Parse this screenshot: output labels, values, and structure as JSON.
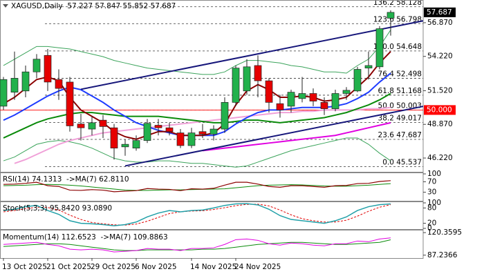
{
  "chart_data": [
    {
      "type": "candlestick",
      "title": "XAGUSD,Daily  57.227 57.847 55.852 57.687",
      "categories": [
        "13 Oct 2025",
        null,
        null,
        null,
        "21 Oct 2025",
        null,
        null,
        null,
        "29 Oct 2025",
        null,
        null,
        null,
        "6 Nov 2025",
        null,
        null,
        null,
        null,
        "14 Nov 2025",
        null,
        null,
        null,
        "24 Nov 2025",
        null,
        null,
        null,
        null,
        null,
        null,
        null,
        null,
        null,
        null,
        null,
        null,
        null,
        null
      ],
      "open": [
        50.3,
        51.4,
        51.5,
        53.0,
        54.3,
        52.4,
        52.2,
        48.9,
        48.5,
        49.2,
        48.6,
        47.1,
        47.0,
        47.6,
        48.8,
        48.6,
        48.2,
        47.2,
        48.3,
        48.1,
        48.5,
        50.6,
        51.5,
        53.5,
        52.3,
        50.5,
        50.3,
        50.9,
        51.3,
        50.6,
        50.1,
        51.3,
        51.5,
        53.3,
        53.4,
        57.227
      ],
      "high": [
        52.6,
        54.6,
        53.5,
        54.4,
        54.8,
        53.2,
        52.6,
        49.7,
        49.5,
        49.6,
        48.9,
        47.7,
        48.0,
        49.3,
        49.3,
        49.0,
        48.5,
        48.6,
        48.9,
        48.8,
        51.0,
        53.5,
        54.0,
        54.3,
        52.5,
        51.2,
        51.6,
        52.6,
        51.7,
        51.0,
        51.6,
        51.8,
        53.4,
        54.6,
        56.6,
        57.847
      ],
      "low": [
        50.0,
        50.8,
        51.0,
        52.5,
        51.5,
        50.8,
        48.3,
        47.6,
        48.0,
        47.8,
        46.1,
        46.4,
        46.8,
        47.4,
        48.0,
        48.0,
        47.0,
        47.0,
        47.8,
        47.6,
        48.2,
        50.3,
        51.2,
        51.0,
        49.8,
        49.4,
        49.8,
        50.6,
        50.3,
        49.6,
        49.9,
        50.8,
        51.4,
        52.4,
        53.2,
        55.852
      ],
      "close": [
        52.4,
        52.5,
        53.0,
        54.0,
        52.2,
        51.7,
        48.75,
        48.6,
        49.0,
        48.7,
        47.0,
        47.3,
        47.6,
        48.95,
        48.6,
        48.3,
        47.2,
        48.2,
        48.1,
        48.5,
        50.6,
        53.3,
        53.4,
        52.3,
        50.6,
        50.0,
        51.4,
        51.3,
        50.7,
        50.1,
        51.3,
        51.55,
        53.2,
        53.5,
        56.4,
        57.687
      ],
      "up_color": "#22b14c",
      "down_color": "#e60000",
      "ylim": [
        45.19,
        58.55
      ],
      "yticks": [
        {
          "value": 46.22,
          "label": "46.220"
        },
        {
          "value": 48.87,
          "label": "48.870"
        },
        {
          "value": 51.52,
          "label": "51.520"
        },
        {
          "value": 54.22,
          "label": "54.220"
        },
        {
          "value": 56.87,
          "label": "56.870"
        }
      ],
      "series": [
        {
          "color": "#3aa35a",
          "width": 1,
          "values": [
            53.5,
            54.0,
            54.5,
            55.0,
            55.0,
            54.9,
            54.8,
            54.6,
            54.4,
            54.2,
            53.9,
            53.7,
            53.5,
            53.3,
            53.2,
            53.1,
            53.0,
            52.9,
            52.8,
            52.8,
            53.0,
            53.5,
            53.9,
            53.9,
            53.8,
            53.7,
            53.5,
            53.4,
            53.2,
            53.0,
            53.0,
            52.9,
            53.5,
            54.0,
            55.0,
            56.3
          ]
        },
        {
          "color": "#3aa35a",
          "width": 1,
          "values": [
            46.0,
            46.3,
            46.8,
            47.3,
            47.5,
            47.6,
            47.5,
            47.3,
            47.0,
            46.6,
            46.2,
            46.0,
            45.9,
            45.9,
            46.0,
            46.0,
            45.9,
            45.8,
            45.8,
            45.7,
            45.6,
            45.5,
            45.6,
            45.9,
            46.2,
            46.5,
            46.8,
            47.0,
            47.2,
            47.4,
            47.6,
            47.8,
            47.8,
            47.3,
            46.6,
            46.0
          ]
        },
        {
          "color": "#f0a0d8",
          "width": 2,
          "values": [
            null,
            45.8,
            46.1,
            46.5,
            46.9,
            47.3,
            47.6,
            47.8,
            48.0,
            48.2,
            48.3,
            48.4,
            48.5,
            48.6,
            48.7,
            48.8,
            48.9,
            49.0,
            49.1,
            49.2,
            49.3,
            49.4,
            49.5,
            49.6,
            49.7,
            49.8,
            49.8,
            49.9,
            49.9,
            50.0,
            50.0,
            50.0,
            50.0,
            50.1,
            50.1,
            50.2
          ]
        },
        {
          "color": "#e000e0",
          "width": 2,
          "values": [
            null,
            null,
            null,
            null,
            null,
            null,
            null,
            null,
            null,
            null,
            null,
            null,
            null,
            null,
            null,
            null,
            null,
            null,
            46.8,
            46.9,
            47.0,
            47.1,
            47.2,
            47.3,
            47.4,
            47.5,
            47.6,
            47.7,
            47.8,
            47.9,
            48.0,
            48.2,
            48.4,
            48.6,
            48.8,
            49.0
          ]
        },
        {
          "color": "#0a8a0a",
          "width": 2,
          "values": [
            47.8,
            48.2,
            48.6,
            49.0,
            49.3,
            49.5,
            49.7,
            49.8,
            49.8,
            49.7,
            49.6,
            49.5,
            49.5,
            49.5,
            49.5,
            49.4,
            49.3,
            49.2,
            49.1,
            49.0,
            49.0,
            49.1,
            49.2,
            49.2,
            49.1,
            49.0,
            49.1,
            49.2,
            49.3,
            49.4,
            49.6,
            49.8,
            50.1,
            50.4,
            50.8,
            51.3
          ]
        },
        {
          "color": "#1e3cff",
          "width": 2,
          "values": [
            49.2,
            49.6,
            50.1,
            50.6,
            51.1,
            51.5,
            51.8,
            51.6,
            51.1,
            50.6,
            50.0,
            49.5,
            49.0,
            48.7,
            48.4,
            48.2,
            48.0,
            48.0,
            48.0,
            48.0,
            48.3,
            48.9,
            49.4,
            49.8,
            50.0,
            50.0,
            50.1,
            50.2,
            50.2,
            50.2,
            50.3,
            50.5,
            50.9,
            51.4,
            52.2,
            52.9
          ]
        },
        {
          "color": "#8b0000",
          "width": 2,
          "values": [
            50.5,
            51.0,
            51.7,
            52.4,
            52.6,
            52.3,
            51.0,
            50.0,
            49.5,
            49.0,
            48.3,
            47.9,
            47.7,
            48.0,
            48.3,
            48.3,
            48.0,
            48.0,
            48.0,
            48.2,
            48.9,
            50.4,
            51.5,
            52.0,
            51.6,
            51.0,
            51.0,
            51.1,
            51.0,
            50.7,
            50.8,
            51.0,
            51.8,
            52.6,
            53.7,
            54.6
          ]
        }
      ],
      "trendlines": [
        {
          "color": "#16167a",
          "x0": 7,
          "y0": 51.63,
          "x1": 38,
          "y1": 57.03
        },
        {
          "color": "#16167a",
          "x0": 11,
          "y0": 45.6,
          "x1": 38,
          "y1": 50.3
        }
      ],
      "fib_levels": [
        {
          "value": 58.128,
          "label": "136.2 58.128"
        },
        {
          "value": 56.798,
          "label": "123.6 56.798"
        },
        {
          "value": 54.648,
          "label": "100.0 54.648"
        },
        {
          "value": 52.498,
          "label": "76.4 52.498"
        },
        {
          "value": 51.168,
          "label": "61.8 51.168"
        },
        {
          "value": 50.003,
          "label": "50.0 50.003"
        },
        {
          "value": 49.017,
          "label": "38.2 49.017"
        },
        {
          "value": 47.687,
          "label": "23.6 47.687"
        },
        {
          "value": 45.537,
          "label": "0.0 45.537"
        }
      ],
      "alert_line": {
        "value": 50.0,
        "label": "50.000",
        "color": "#ff0000"
      },
      "last_price": {
        "value": 57.687,
        "label": "57.687"
      }
    },
    {
      "type": "line",
      "title": "RSI(14) 74.1313  ->MA(7) 62.8110",
      "ylim": [
        0,
        100
      ],
      "yticks": [
        100,
        70,
        30
      ],
      "series": [
        {
          "color": "#0a8a0a",
          "width": 1,
          "values": [
            55,
            56,
            57,
            59,
            60,
            59,
            57,
            54,
            50,
            46,
            42,
            38,
            37,
            37,
            38,
            39,
            39,
            40,
            41,
            42,
            43,
            47,
            51,
            55,
            57,
            58,
            59,
            58,
            56,
            54,
            53,
            53,
            55,
            57,
            60,
            62.811
          ]
        },
        {
          "color": "#8b0000",
          "width": 1.2,
          "values": [
            60,
            61,
            64,
            68,
            55,
            52,
            38,
            37,
            40,
            38,
            32,
            34,
            36,
            44,
            42,
            41,
            36,
            43,
            42,
            45,
            57,
            68,
            68,
            61,
            52,
            49,
            55,
            55,
            52,
            49,
            55,
            56,
            63,
            64,
            71,
            74.1313
          ]
        }
      ]
    },
    {
      "type": "line",
      "title": "Stoch(5,3,3) 95.8420 93.0890",
      "ylim": [
        0,
        100
      ],
      "yticks": [
        100,
        80,
        20,
        0
      ],
      "series": [
        {
          "color": "#e00000",
          "width": 1,
          "style": "dashed",
          "values": [
            65,
            70,
            77,
            83,
            82,
            72,
            52,
            35,
            23,
            18,
            14,
            13,
            17,
            28,
            43,
            58,
            65,
            68,
            69,
            74,
            81,
            89,
            94,
            95,
            88,
            72,
            53,
            38,
            30,
            25,
            25,
            32,
            48,
            67,
            83,
            93.089
          ]
        },
        {
          "color": "#20a0a8",
          "width": 1.5,
          "values": [
            70,
            75,
            85,
            90,
            70,
            55,
            30,
            20,
            18,
            15,
            10,
            15,
            25,
            45,
            60,
            70,
            65,
            70,
            72,
            80,
            90,
            96,
            97,
            92,
            75,
            50,
            35,
            30,
            25,
            20,
            30,
            45,
            70,
            85,
            93,
            95.842
          ]
        }
      ]
    },
    {
      "type": "line",
      "title": "Momentum(14) 112.6523  ->MA(7) 109.8863",
      "ylim": [
        84,
        121.5
      ],
      "yticks": [
        120.3595,
        87.2366
      ],
      "series": [
        {
          "color": "#0a8a0a",
          "width": 1,
          "values": [
            100,
            101,
            102,
            103,
            104,
            104,
            103,
            101,
            99,
            97,
            95,
            94,
            94,
            95,
            95,
            95,
            95,
            95,
            96,
            96,
            97,
            99,
            101,
            103,
            104,
            105,
            106,
            106,
            105,
            104,
            103,
            103,
            104,
            105,
            106,
            109.8863
          ]
        },
        {
          "color": "#e000e0",
          "width": 1,
          "values": [
            103,
            104,
            105,
            106,
            103,
            101,
            96,
            95,
            96,
            95,
            92,
            93,
            94,
            97,
            96,
            96,
            94,
            97,
            97,
            98,
            103,
            110,
            111,
            109,
            104,
            102,
            105,
            104,
            102,
            101,
            104,
            104,
            108,
            107,
            111,
            112.6523
          ]
        }
      ]
    }
  ]
}
